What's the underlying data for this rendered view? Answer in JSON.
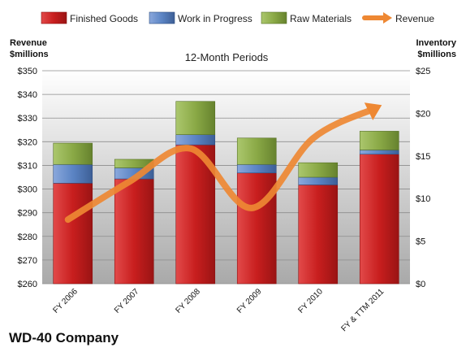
{
  "chart_data": {
    "type": "bar",
    "title": "",
    "subtitle": "12-Month Periods",
    "company": "WD-40 Company",
    "y_left": {
      "label_line1": "Revenue",
      "label_line2": "$millions",
      "range": [
        260,
        350
      ],
      "ticks": [
        "$260",
        "$270",
        "$280",
        "$290",
        "$300",
        "$310",
        "$320",
        "$330",
        "$340",
        "$350"
      ]
    },
    "y_right": {
      "label_line1": "Inventory",
      "label_line2": "$millions",
      "range": [
        0,
        25
      ],
      "ticks": [
        "$0",
        "$5",
        "$10",
        "$15",
        "$20",
        "$25"
      ]
    },
    "categories": [
      "FY 2006",
      "FY 2007",
      "FY 2008",
      "FY 2009",
      "FY 2010",
      "FY & TTM 2011"
    ],
    "series": [
      {
        "name": "Finished Goods",
        "axis": "right",
        "stacked": true,
        "color": "#cc2222",
        "values": [
          11.8,
          12.3,
          16.3,
          13.0,
          11.6,
          15.2
        ]
      },
      {
        "name": "Work in Progress",
        "axis": "right",
        "stacked": true,
        "color": "#5b84c4",
        "values": [
          2.2,
          1.3,
          1.2,
          1.0,
          0.9,
          0.5
        ]
      },
      {
        "name": "Raw Materials",
        "axis": "right",
        "stacked": true,
        "color": "#8fb04a",
        "values": [
          2.5,
          1.0,
          3.9,
          3.1,
          1.7,
          2.2
        ]
      },
      {
        "name": "Revenue",
        "axis": "left",
        "type": "line",
        "color": "#ee8833",
        "values": [
          287.1,
          303.1,
          317.1,
          292.0,
          321.5,
          334.0
        ]
      }
    ],
    "legend_position": "top",
    "grid": true
  }
}
